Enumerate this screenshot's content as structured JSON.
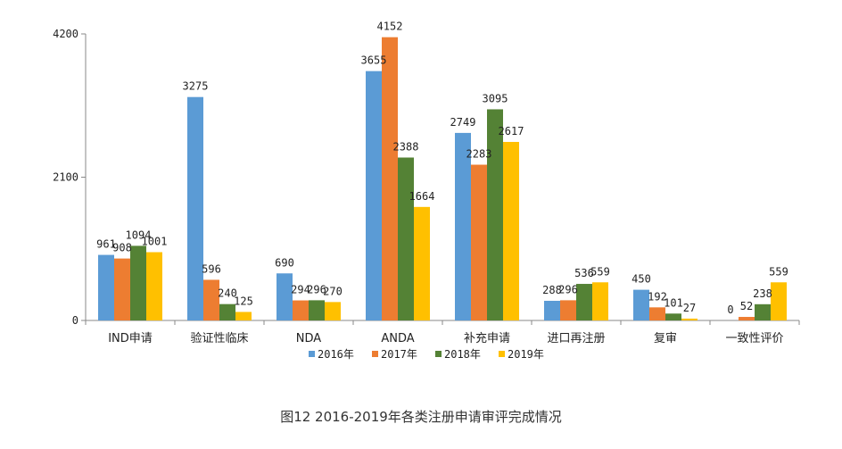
{
  "chart_data": {
    "type": "bar",
    "categories": [
      "IND申请",
      "验证性临床",
      "NDA",
      "ANDA",
      "补充申请",
      "进口再注册",
      "复审",
      "一致性评价"
    ],
    "series": [
      {
        "name": "2016年",
        "color": "#5b9bd5",
        "values": [
          961,
          3275,
          690,
          3655,
          2749,
          288,
          450,
          0
        ]
      },
      {
        "name": "2017年",
        "color": "#ed7d31",
        "values": [
          908,
          596,
          294,
          4152,
          2283,
          296,
          192,
          52
        ]
      },
      {
        "name": "2018年",
        "color": "#548235",
        "values": [
          1094,
          240,
          296,
          2388,
          3095,
          536,
          101,
          238
        ]
      },
      {
        "name": "2019年",
        "color": "#ffc000",
        "values": [
          1001,
          125,
          270,
          1664,
          2617,
          559,
          27,
          559
        ]
      }
    ],
    "y_ticks": [
      "0",
      "2100",
      "4200"
    ],
    "ylim": [
      0,
      4200
    ],
    "grid": false,
    "legend_position": "bottom"
  },
  "caption": "图12 2016-2019年各类注册申请审评完成情况"
}
